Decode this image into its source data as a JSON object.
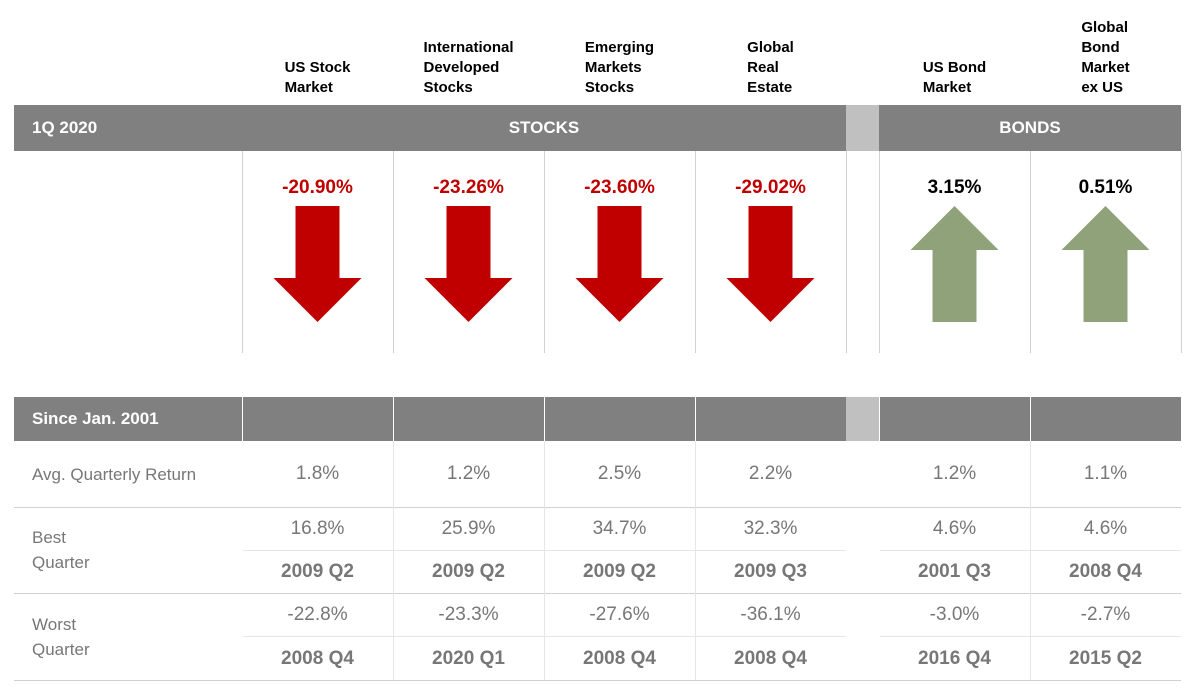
{
  "period_label": "1Q 2020",
  "groups": {
    "stocks": "STOCKS",
    "bonds": "BONDS"
  },
  "down_color": "#c00000",
  "up_color": "#8fa27a",
  "since_label": "Since Jan. 2001",
  "row_labels": {
    "avg": [
      "Avg. Quarterly Return"
    ],
    "best": [
      "Best",
      "Quarter"
    ],
    "worst": [
      "Worst",
      "Quarter"
    ]
  },
  "assets": [
    {
      "name": [
        "US Stock",
        "Market"
      ],
      "return": -20.9,
      "return_label": "-20.90%",
      "avg": "1.8%",
      "best": "16.8%",
      "best_quarter": "2009 Q2",
      "worst": "-22.8%",
      "worst_quarter": "2008 Q4"
    },
    {
      "name": [
        "International",
        "Developed",
        "Stocks"
      ],
      "return": -23.26,
      "return_label": "-23.26%",
      "avg": "1.2%",
      "best": "25.9%",
      "best_quarter": "2009 Q2",
      "worst": "-23.3%",
      "worst_quarter": "2020 Q1"
    },
    {
      "name": [
        "Emerging",
        "Markets",
        "Stocks"
      ],
      "return": -23.6,
      "return_label": "-23.60%",
      "avg": "2.5%",
      "best": "34.7%",
      "best_quarter": "2009 Q2",
      "worst": "-27.6%",
      "worst_quarter": "2008 Q4"
    },
    {
      "name": [
        "Global",
        "Real",
        "Estate"
      ],
      "return": -29.02,
      "return_label": "-29.02%",
      "avg": "2.2%",
      "best": "32.3%",
      "best_quarter": "2009 Q3",
      "worst": "-36.1%",
      "worst_quarter": "2008 Q4"
    },
    {
      "name": [
        "US Bond",
        "Market"
      ],
      "return": 3.15,
      "return_label": "3.15%",
      "avg": "1.2%",
      "best": "4.6%",
      "best_quarter": "2001 Q3",
      "worst": "-3.0%",
      "worst_quarter": "2016 Q4"
    },
    {
      "name": [
        "Global",
        "Bond",
        "Market",
        "ex US"
      ],
      "return": 0.51,
      "return_label": "0.51%",
      "avg": "1.1%",
      "best": "4.6%",
      "best_quarter": "2008 Q4",
      "worst": "-2.7%",
      "worst_quarter": "2015 Q2"
    }
  ]
}
